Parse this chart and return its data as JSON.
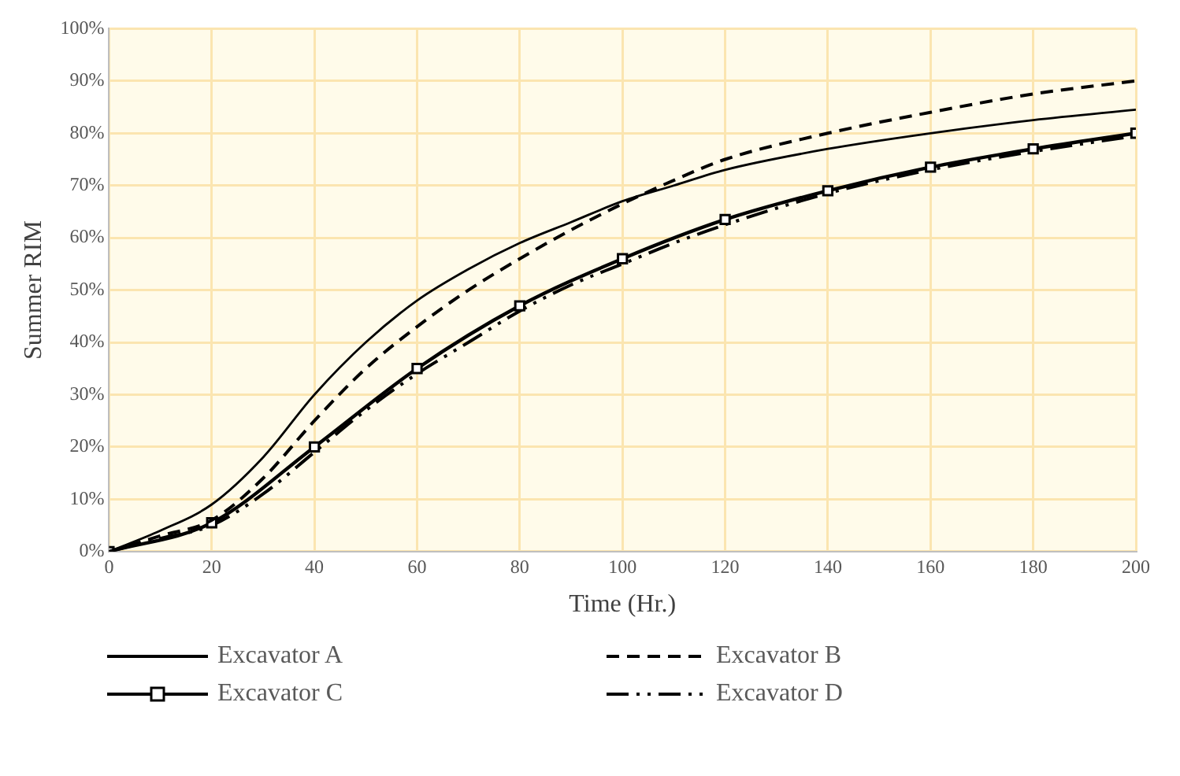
{
  "chart_data": {
    "type": "line",
    "xlabel": "Time (Hr.)",
    "ylabel": "Summer RIM",
    "xlim": [
      0,
      200
    ],
    "xticks": [
      0,
      20,
      40,
      60,
      80,
      100,
      120,
      140,
      160,
      180,
      200
    ],
    "ylim": [
      0,
      100
    ],
    "yticks": [
      {
        "value": 0,
        "label": "0%"
      },
      {
        "value": 10,
        "label": "10%"
      },
      {
        "value": 20,
        "label": "20%"
      },
      {
        "value": 30,
        "label": "30%"
      },
      {
        "value": 40,
        "label": "40%"
      },
      {
        "value": 50,
        "label": "50%"
      },
      {
        "value": 60,
        "label": "60%"
      },
      {
        "value": 70,
        "label": "70%"
      },
      {
        "value": 80,
        "label": "80%"
      },
      {
        "value": 90,
        "label": "90%"
      },
      {
        "value": 100,
        "label": "100%"
      }
    ],
    "grid": true,
    "legend": "bottom",
    "marker": "none",
    "series": [
      {
        "name": "Excavator A",
        "color": "#000000",
        "line_style": "solid",
        "x": [
          0,
          10,
          20,
          30,
          40,
          50,
          60,
          70,
          80,
          90,
          100,
          110,
          120,
          140,
          160,
          180,
          200
        ],
        "values": [
          0,
          4,
          9,
          18,
          30,
          40,
          48,
          54,
          59,
          63,
          67,
          70,
          73,
          77,
          80,
          82.5,
          84.5
        ]
      },
      {
        "name": "Excavator B",
        "color": "#000000",
        "line_style": "dashed",
        "x": [
          0,
          10,
          20,
          30,
          40,
          50,
          60,
          70,
          80,
          90,
          100,
          110,
          120,
          140,
          160,
          180,
          200
        ],
        "values": [
          0,
          3,
          6,
          14,
          25,
          35,
          43,
          50,
          56,
          61.5,
          66.5,
          71,
          75,
          80,
          84,
          87.5,
          90
        ]
      },
      {
        "name": "Excavator C",
        "color": "#000000",
        "line_style": "solid",
        "marker": "square",
        "x": [
          0,
          20,
          40,
          60,
          80,
          100,
          120,
          140,
          160,
          180,
          200
        ],
        "values": [
          0,
          5.5,
          20,
          35,
          47,
          56,
          63.5,
          69,
          73.5,
          77,
          80
        ]
      },
      {
        "name": "Excavator D",
        "color": "#000000",
        "line_style": "dashed",
        "x": [
          0,
          10,
          20,
          30,
          40,
          50,
          60,
          70,
          80,
          90,
          100,
          110,
          120,
          140,
          160,
          180,
          200
        ],
        "values": [
          0,
          2.5,
          5,
          11,
          19,
          27,
          34,
          40,
          46,
          51,
          55,
          59,
          62.5,
          68.5,
          73,
          76.5,
          79.5
        ]
      }
    ]
  }
}
